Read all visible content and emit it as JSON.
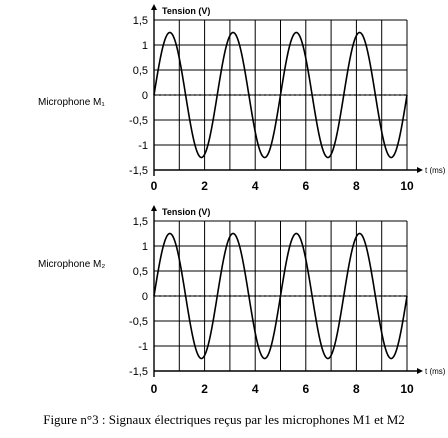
{
  "chart_data": [
    {
      "type": "line",
      "name": "Microphone M1",
      "ylabel": "Tension (V)",
      "xlabel": "t (ms)",
      "ylim": [
        -1.5,
        1.5
      ],
      "xlim": [
        0,
        10
      ],
      "yticks": [
        "1,5",
        "1",
        "0,5",
        "0",
        "-0,5",
        "-1",
        "-1,5"
      ],
      "xticks": [
        "0",
        "2",
        "4",
        "6",
        "8",
        "10"
      ],
      "grid": true,
      "series": [
        {
          "name": "Microphone M1",
          "amplitude": 1.25,
          "period_ms": 2.5,
          "phase_start_ms": 0.0,
          "x": [
            0,
            0.625,
            1.25,
            1.875,
            2.5,
            3.125,
            3.75,
            4.375,
            5,
            5.625,
            6.25,
            6.875,
            7.5,
            8.125,
            8.75,
            9.375,
            10
          ],
          "y": [
            0,
            1.25,
            0,
            -1.25,
            0,
            1.25,
            0,
            -1.25,
            0,
            1.25,
            0,
            -1.25,
            0,
            1.25,
            0,
            -1.25,
            0
          ]
        }
      ]
    },
    {
      "type": "line",
      "name": "Microphone M2",
      "ylabel": "Tension (V)",
      "xlabel": "t (ms)",
      "ylim": [
        -1.5,
        1.5
      ],
      "xlim": [
        0,
        10
      ],
      "yticks": [
        "1,5",
        "1",
        "0,5",
        "0",
        "-0,5",
        "-1",
        "-1,5"
      ],
      "xticks": [
        "0",
        "2",
        "4",
        "6",
        "8",
        "10"
      ],
      "grid": true,
      "series": [
        {
          "name": "Microphone M2",
          "amplitude": 1.25,
          "period_ms": 2.5,
          "phase_start_ms": 0.0,
          "x": [
            0,
            0.625,
            1.25,
            1.875,
            2.5,
            3.125,
            3.75,
            4.375,
            5,
            5.625,
            6.25,
            6.875,
            7.5,
            8.125,
            8.75,
            9.375,
            10
          ],
          "y": [
            0,
            1.25,
            0,
            -1.25,
            0,
            1.25,
            0,
            -1.25,
            0,
            1.25,
            0,
            -1.25,
            0,
            1.25,
            0,
            -1.25,
            0
          ]
        }
      ]
    }
  ],
  "labels": {
    "mic1": "Microphone M₁",
    "mic2": "Microphone M₂"
  },
  "caption": "Figure n°3 : Signaux électriques reçus par les microphones M1 et M2",
  "colors": {
    "ink": "#000000",
    "background": "#ffffff"
  }
}
